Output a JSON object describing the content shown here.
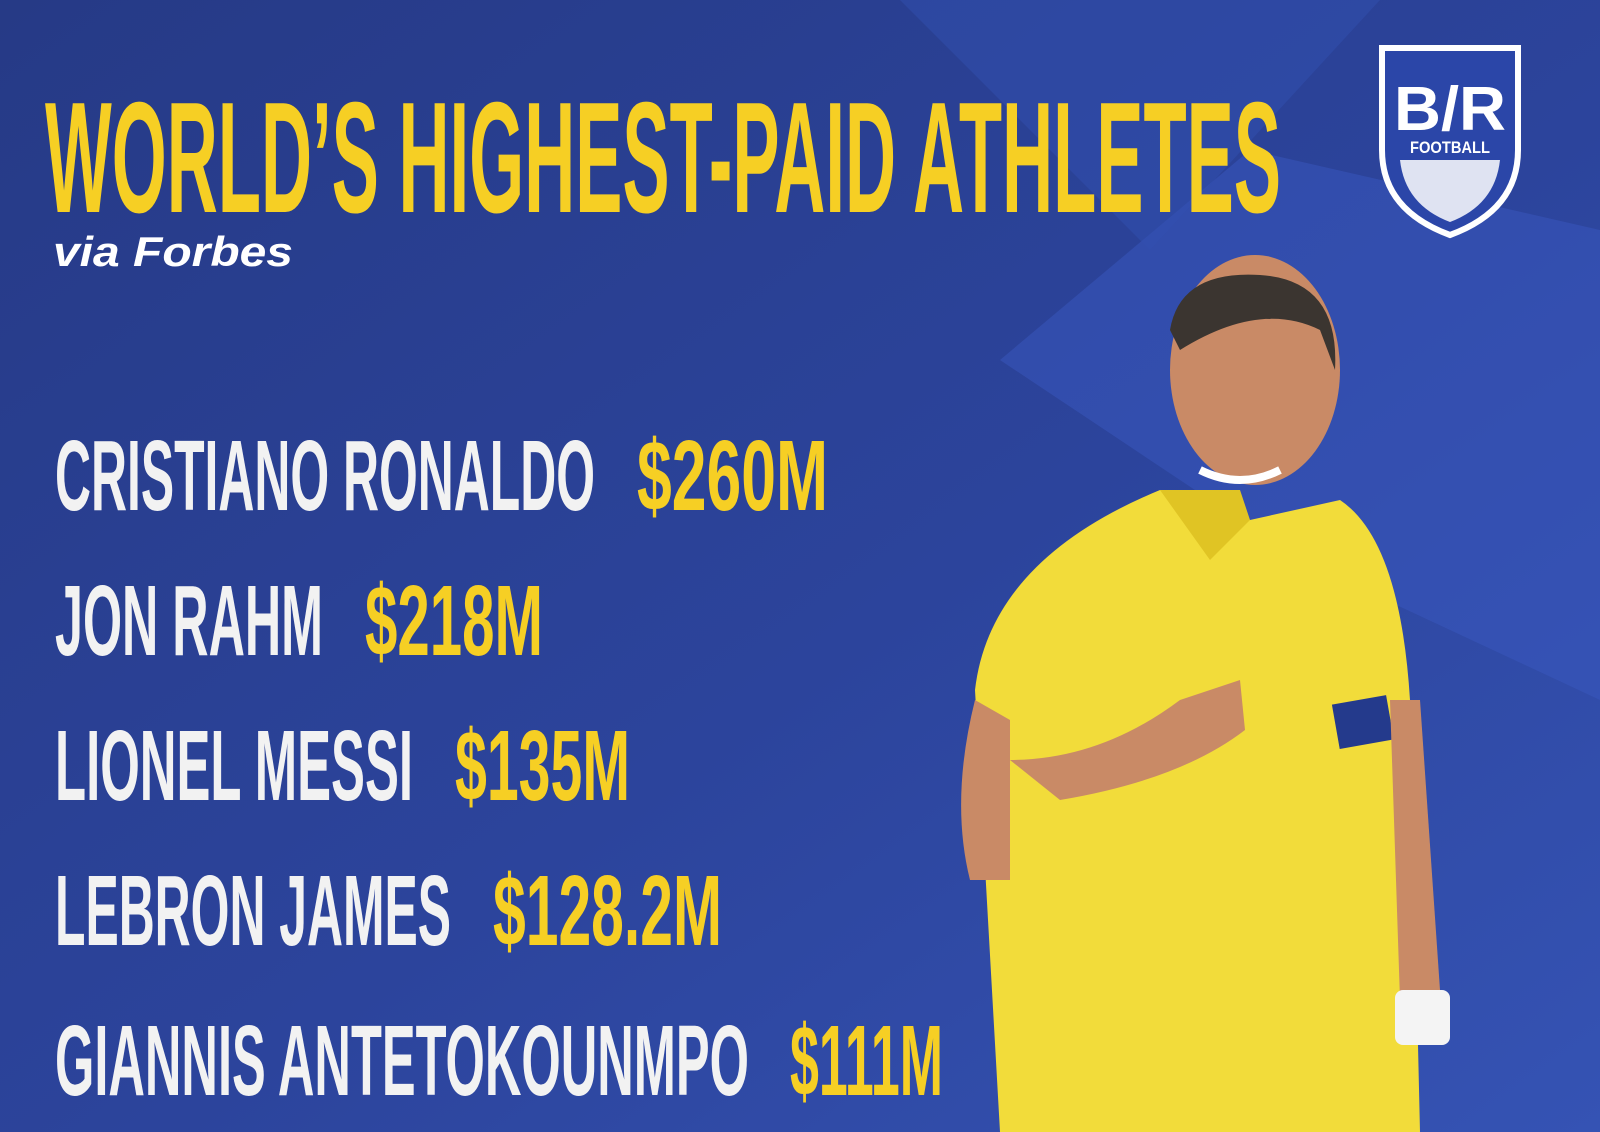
{
  "header": {
    "title": "WORLD’S HIGHEST-PAID ATHLETES",
    "source": "via Forbes"
  },
  "logo": {
    "mark": "B/R",
    "label": "FOOTBALL"
  },
  "athletes": [
    {
      "name": "CRISTIANO RONALDO",
      "earnings": "$260M"
    },
    {
      "name": "JON RAHM",
      "earnings": "$218M"
    },
    {
      "name": "LIONEL MESSI",
      "earnings": "$135M"
    },
    {
      "name": "LEBRON JAMES",
      "earnings": "$128.2M"
    },
    {
      "name": "GIANNIS ANTETOKOUNMPO",
      "earnings": "$111M"
    }
  ]
}
